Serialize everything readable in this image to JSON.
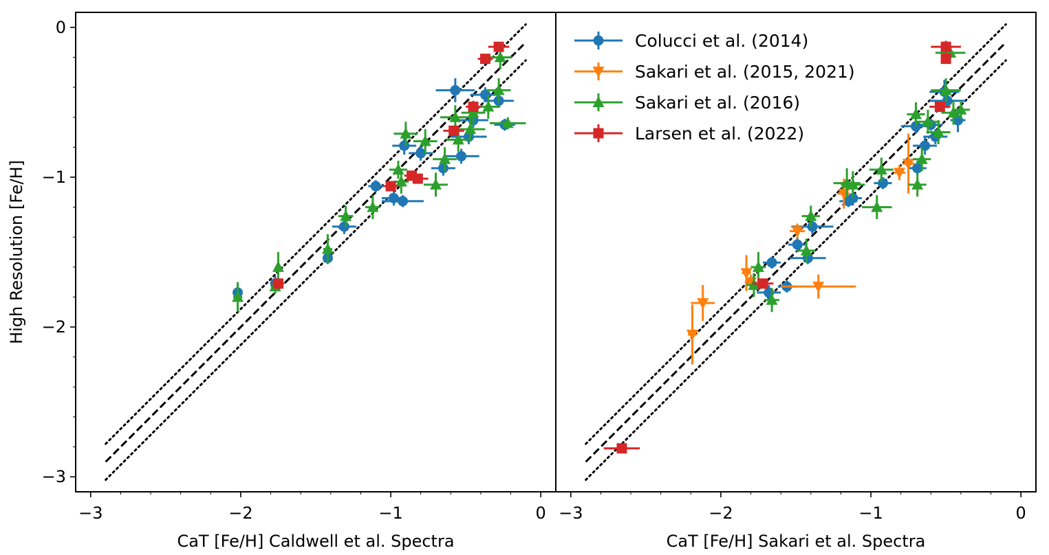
{
  "chart_data": {
    "type": "scatter",
    "ylabel": "High Resolution [Fe/H]",
    "xlim": [
      -3.1,
      0.1
    ],
    "ylim": [
      -3.1,
      0.1
    ],
    "x_ticks": [
      -3,
      -2,
      -1,
      0
    ],
    "y_ticks": [
      0,
      -1,
      -2,
      -3
    ],
    "x_tick_labels": [
      "−3",
      "−2",
      "−1",
      "0"
    ],
    "y_tick_labels": [
      "0",
      "−1",
      "−2",
      "−3"
    ],
    "reference_lines": [
      {
        "name": "one-to-one",
        "style": "dashed",
        "offset": 0.0,
        "x": [
          -2.9,
          -0.1
        ]
      },
      {
        "name": "upper-bound",
        "style": "dotted",
        "offset": 0.12,
        "x": [
          -2.9,
          -0.1
        ]
      },
      {
        "name": "lower-bound",
        "style": "dotted",
        "offset": -0.12,
        "x": [
          -2.9,
          -0.1
        ]
      }
    ],
    "legend": {
      "position": "upper-left of right panel",
      "entries": [
        {
          "label": "Colucci et al. (2014)",
          "color": "#1f77b4",
          "marker": "circle"
        },
        {
          "label": "Sakari et al. (2015, 2021)",
          "color": "#ff7f0e",
          "marker": "triangle-down"
        },
        {
          "label": "Sakari et al. (2016)",
          "color": "#2ca02c",
          "marker": "triangle-up"
        },
        {
          "label": "Larsen et al. (2022)",
          "color": "#d62728",
          "marker": "square"
        }
      ]
    },
    "panels": [
      {
        "xlabel": "CaT [Fe/H] Caldwell et al. Spectra",
        "series": [
          {
            "name": "Colucci et al. (2014)",
            "color": "#1f77b4",
            "marker": "circle",
            "points": [
              {
                "x": -2.02,
                "y": -1.77,
                "xerr": 0.02,
                "yerr": 0.05
              },
              {
                "x": -1.77,
                "y": -1.71,
                "xerr": 0.03,
                "yerr": 0.05
              },
              {
                "x": -1.42,
                "y": -1.54,
                "xerr": 0.03,
                "yerr": 0.04
              },
              {
                "x": -1.31,
                "y": -1.33,
                "xerr": 0.08,
                "yerr": 0.05
              },
              {
                "x": -1.1,
                "y": -1.06,
                "xerr": 0.05,
                "yerr": 0.04
              },
              {
                "x": -0.98,
                "y": -1.14,
                "xerr": 0.08,
                "yerr": 0.05
              },
              {
                "x": -0.92,
                "y": -1.16,
                "xerr": 0.14,
                "yerr": 0.04
              },
              {
                "x": -0.91,
                "y": -0.79,
                "xerr": 0.08,
                "yerr": 0.06
              },
              {
                "x": -0.8,
                "y": -0.84,
                "xerr": 0.08,
                "yerr": 0.05
              },
              {
                "x": -0.65,
                "y": -0.94,
                "xerr": 0.08,
                "yerr": 0.05
              },
              {
                "x": -0.57,
                "y": -0.42,
                "xerr": 0.13,
                "yerr": 0.08
              },
              {
                "x": -0.53,
                "y": -0.86,
                "xerr": 0.12,
                "yerr": 0.05
              },
              {
                "x": -0.48,
                "y": -0.73,
                "xerr": 0.12,
                "yerr": 0.05
              },
              {
                "x": -0.45,
                "y": -0.62,
                "xerr": 0.1,
                "yerr": 0.05
              },
              {
                "x": -0.37,
                "y": -0.45,
                "xerr": 0.1,
                "yerr": 0.05
              },
              {
                "x": -0.28,
                "y": -0.49,
                "xerr": 0.1,
                "yerr": 0.04
              },
              {
                "x": -0.24,
                "y": -0.65,
                "xerr": 0.07,
                "yerr": 0.04
              }
            ]
          },
          {
            "name": "Sakari et al. (2016)",
            "color": "#2ca02c",
            "marker": "triangle-up",
            "points": [
              {
                "x": -2.02,
                "y": -1.8,
                "xerr": 0.03,
                "yerr": 0.1
              },
              {
                "x": -1.77,
                "y": -1.73,
                "xerr": 0.03,
                "yerr": 0.05
              },
              {
                "x": -1.75,
                "y": -1.6,
                "xerr": 0.02,
                "yerr": 0.1
              },
              {
                "x": -1.42,
                "y": -1.48,
                "xerr": 0.03,
                "yerr": 0.1
              },
              {
                "x": -1.3,
                "y": -1.26,
                "xerr": 0.05,
                "yerr": 0.07
              },
              {
                "x": -1.12,
                "y": -1.2,
                "xerr": 0.05,
                "yerr": 0.08
              },
              {
                "x": -0.95,
                "y": -0.95,
                "xerr": 0.06,
                "yerr": 0.06
              },
              {
                "x": -0.93,
                "y": -1.03,
                "xerr": 0.05,
                "yerr": 0.08
              },
              {
                "x": -0.9,
                "y": -0.71,
                "xerr": 0.08,
                "yerr": 0.08
              },
              {
                "x": -0.77,
                "y": -0.76,
                "xerr": 0.08,
                "yerr": 0.08
              },
              {
                "x": -0.7,
                "y": -1.05,
                "xerr": 0.08,
                "yerr": 0.08
              },
              {
                "x": -0.64,
                "y": -0.88,
                "xerr": 0.08,
                "yerr": 0.08
              },
              {
                "x": -0.57,
                "y": -0.6,
                "xerr": 0.1,
                "yerr": 0.08
              },
              {
                "x": -0.55,
                "y": -0.75,
                "xerr": 0.08,
                "yerr": 0.08
              },
              {
                "x": -0.47,
                "y": -0.68,
                "xerr": 0.1,
                "yerr": 0.08
              },
              {
                "x": -0.45,
                "y": -0.57,
                "xerr": 0.08,
                "yerr": 0.08
              },
              {
                "x": -0.35,
                "y": -0.53,
                "xerr": 0.08,
                "yerr": 0.08
              },
              {
                "x": -0.28,
                "y": -0.42,
                "xerr": 0.08,
                "yerr": 0.08
              },
              {
                "x": -0.27,
                "y": -0.2,
                "xerr": 0.08,
                "yerr": 0.08
              },
              {
                "x": -0.22,
                "y": -0.64,
                "xerr": 0.12,
                "yerr": 0.04
              }
            ]
          },
          {
            "name": "Larsen et al. (2022)",
            "color": "#d62728",
            "marker": "square",
            "points": [
              {
                "x": -1.75,
                "y": -1.71,
                "xerr": 0.04,
                "yerr": 0.03
              },
              {
                "x": -1.0,
                "y": -1.06,
                "xerr": 0.05,
                "yerr": 0.03
              },
              {
                "x": -0.86,
                "y": -0.99,
                "xerr": 0.05,
                "yerr": 0.03
              },
              {
                "x": -0.82,
                "y": -1.01,
                "xerr": 0.07,
                "yerr": 0.03
              },
              {
                "x": -0.58,
                "y": -0.69,
                "xerr": 0.07,
                "yerr": 0.03
              },
              {
                "x": -0.45,
                "y": -0.53,
                "xerr": 0.05,
                "yerr": 0.03
              },
              {
                "x": -0.37,
                "y": -0.21,
                "xerr": 0.05,
                "yerr": 0.03
              },
              {
                "x": -0.28,
                "y": -0.13,
                "xerr": 0.07,
                "yerr": 0.03
              }
            ]
          }
        ]
      },
      {
        "xlabel": "CaT [Fe/H] Sakari et al. Spectra",
        "series": [
          {
            "name": "Colucci et al. (2014)",
            "color": "#1f77b4",
            "marker": "circle",
            "points": [
              {
                "x": -1.68,
                "y": -1.77,
                "xerr": 0.08,
                "yerr": 0.05
              },
              {
                "x": -1.66,
                "y": -1.57,
                "xerr": 0.06,
                "yerr": 0.04
              },
              {
                "x": -1.56,
                "y": -1.73,
                "xerr": 0.06,
                "yerr": 0.04
              },
              {
                "x": -1.49,
                "y": -1.45,
                "xerr": 0.06,
                "yerr": 0.05
              },
              {
                "x": -1.42,
                "y": -1.54,
                "xerr": 0.12,
                "yerr": 0.04
              },
              {
                "x": -1.39,
                "y": -1.33,
                "xerr": 0.14,
                "yerr": 0.05
              },
              {
                "x": -1.15,
                "y": -1.16,
                "xerr": 0.06,
                "yerr": 0.04
              },
              {
                "x": -1.12,
                "y": -1.14,
                "xerr": 0.06,
                "yerr": 0.05
              },
              {
                "x": -0.92,
                "y": -1.04,
                "xerr": 0.06,
                "yerr": 0.04
              },
              {
                "x": -0.69,
                "y": -0.94,
                "xerr": 0.06,
                "yerr": 0.05
              },
              {
                "x": -0.7,
                "y": -0.66,
                "xerr": 0.1,
                "yerr": 0.05
              },
              {
                "x": -0.64,
                "y": -0.79,
                "xerr": 0.08,
                "yerr": 0.06
              },
              {
                "x": -0.57,
                "y": -0.73,
                "xerr": 0.08,
                "yerr": 0.05
              },
              {
                "x": -0.51,
                "y": -0.43,
                "xerr": 0.1,
                "yerr": 0.08
              },
              {
                "x": -0.49,
                "y": -0.49,
                "xerr": 0.12,
                "yerr": 0.05
              },
              {
                "x": -0.42,
                "y": -0.62,
                "xerr": 0.05,
                "yerr": 0.08
              },
              {
                "x": -0.6,
                "y": -0.65,
                "xerr": 0.08,
                "yerr": 0.04
              }
            ]
          },
          {
            "name": "Sakari et al. (2015, 2021)",
            "color": "#ff7f0e",
            "marker": "triangle-down",
            "points": [
              {
                "x": -2.19,
                "y": -2.05,
                "xerr": 0.03,
                "yerr": 0.2
              },
              {
                "x": -2.12,
                "y": -1.84,
                "xerr": 0.08,
                "yerr": 0.12
              },
              {
                "x": -1.83,
                "y": -1.64,
                "xerr": 0.03,
                "yerr": 0.12
              },
              {
                "x": -1.8,
                "y": -1.7,
                "xerr": 0.04,
                "yerr": 0.05
              },
              {
                "x": -1.49,
                "y": -1.36,
                "xerr": 0.05,
                "yerr": 0.05
              },
              {
                "x": -1.35,
                "y": -1.73,
                "xerr": 0.25,
                "yerr": 0.08
              },
              {
                "x": -1.18,
                "y": -1.11,
                "xerr": 0.04,
                "yerr": 0.1
              },
              {
                "x": -0.81,
                "y": -0.97,
                "xerr": 0.04,
                "yerr": 0.05
              },
              {
                "x": -0.75,
                "y": -0.91,
                "xerr": 0.04,
                "yerr": 0.2
              }
            ]
          },
          {
            "name": "Sakari et al. (2016)",
            "color": "#2ca02c",
            "marker": "triangle-up",
            "points": [
              {
                "x": -1.78,
                "y": -1.72,
                "xerr": 0.05,
                "yerr": 0.08
              },
              {
                "x": -1.75,
                "y": -1.6,
                "xerr": 0.05,
                "yerr": 0.1
              },
              {
                "x": -1.66,
                "y": -1.82,
                "xerr": 0.05,
                "yerr": 0.08
              },
              {
                "x": -1.43,
                "y": -1.49,
                "xerr": 0.06,
                "yerr": 0.08
              },
              {
                "x": -1.4,
                "y": -1.26,
                "xerr": 0.06,
                "yerr": 0.07
              },
              {
                "x": -1.16,
                "y": -1.04,
                "xerr": 0.09,
                "yerr": 0.1
              },
              {
                "x": -1.12,
                "y": -1.05,
                "xerr": 0.08,
                "yerr": 0.09
              },
              {
                "x": -0.96,
                "y": -1.2,
                "xerr": 0.1,
                "yerr": 0.08
              },
              {
                "x": -0.93,
                "y": -0.95,
                "xerr": 0.08,
                "yerr": 0.08
              },
              {
                "x": -0.7,
                "y": -0.58,
                "xerr": 0.06,
                "yerr": 0.08
              },
              {
                "x": -0.69,
                "y": -1.05,
                "xerr": 0.06,
                "yerr": 0.08
              },
              {
                "x": -0.66,
                "y": -0.88,
                "xerr": 0.06,
                "yerr": 0.08
              },
              {
                "x": -0.62,
                "y": -0.63,
                "xerr": 0.08,
                "yerr": 0.08
              },
              {
                "x": -0.55,
                "y": -0.7,
                "xerr": 0.08,
                "yerr": 0.08
              },
              {
                "x": -0.5,
                "y": -0.42,
                "xerr": 0.1,
                "yerr": 0.08
              },
              {
                "x": -0.45,
                "y": -0.57,
                "xerr": 0.08,
                "yerr": 0.08
              },
              {
                "x": -0.4,
                "y": -0.55,
                "xerr": 0.06,
                "yerr": 0.06
              },
              {
                "x": -0.47,
                "y": -0.17,
                "xerr": 0.1,
                "yerr": 0.04
              }
            ]
          },
          {
            "name": "Larsen et al. (2022)",
            "color": "#d62728",
            "marker": "square",
            "points": [
              {
                "x": -2.66,
                "y": -2.81,
                "xerr": 0.12,
                "yerr": 0.02
              },
              {
                "x": -1.72,
                "y": -1.71,
                "xerr": 0.07,
                "yerr": 0.03
              },
              {
                "x": -0.54,
                "y": -0.53,
                "xerr": 0.07,
                "yerr": 0.03
              },
              {
                "x": -0.5,
                "y": -0.21,
                "xerr": 0.03,
                "yerr": 0.03
              },
              {
                "x": -0.5,
                "y": -0.13,
                "xerr": 0.1,
                "yerr": 0.04
              }
            ]
          }
        ]
      }
    ]
  }
}
